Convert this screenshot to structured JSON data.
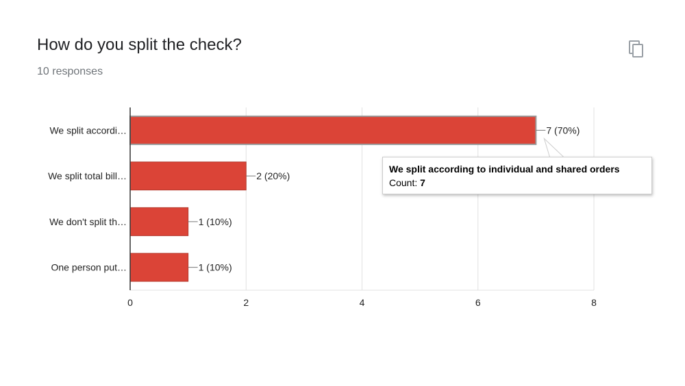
{
  "header": {
    "title": "How do you split the check?",
    "responses": "10 responses",
    "copy_icon": "copy-icon"
  },
  "colors": {
    "bar": "#db4437",
    "bar_stroke": "#b33a2e",
    "grid": "#e0e0e0",
    "axis": "#333333",
    "text": "#222222"
  },
  "tooltip": {
    "title": "We split according to individual and shared orders",
    "count_label": "Count: ",
    "count_value": "7"
  },
  "chart_data": {
    "type": "bar",
    "orientation": "horizontal",
    "categories": [
      "We split accordi…",
      "We split total bill…",
      "We don't split th…",
      "One person put…"
    ],
    "values": [
      7,
      2,
      1,
      1
    ],
    "data_labels": [
      "7 (70%)",
      "2 (20%)",
      "1 (10%)",
      "1 (10%)"
    ],
    "xlim": [
      0,
      8
    ],
    "x_ticks": [
      0,
      2,
      4,
      6,
      8
    ],
    "grid": true,
    "legend": "none",
    "highlighted_index": 0
  }
}
